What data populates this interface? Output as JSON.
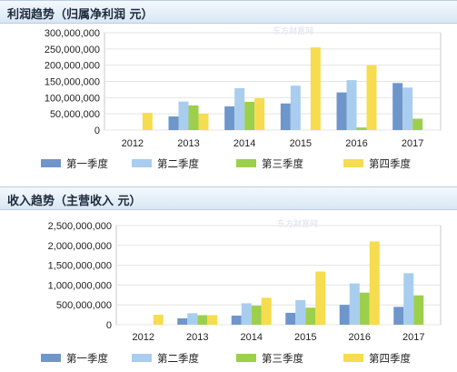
{
  "colors": {
    "q1": "#6f96cb",
    "q2": "#a9cdee",
    "q3": "#9ccf4c",
    "q4": "#f6dc4f",
    "grid": "#e4e4e4"
  },
  "chart_data": [
    {
      "type": "bar",
      "title": "利润趋势（归属净利润  元）",
      "watermark": "东方财富网",
      "categories": [
        "2012",
        "2013",
        "2014",
        "2015",
        "2016",
        "2017"
      ],
      "ylim": [
        0,
        300000000
      ],
      "yticks": [
        "0",
        "50,000,000",
        "100,000,000",
        "150,000,000",
        "200,000,000",
        "250,000,000",
        "300,000,000"
      ],
      "ytick_values": [
        0,
        50000000,
        100000000,
        150000000,
        200000000,
        250000000,
        300000000
      ],
      "series": [
        {
          "name": "第一季度",
          "color": "#6f96cb",
          "values": [
            null,
            42000000,
            73000000,
            82000000,
            116000000,
            145000000
          ]
        },
        {
          "name": "第二季度",
          "color": "#a9cdee",
          "values": [
            null,
            88000000,
            129000000,
            137000000,
            154000000,
            131000000
          ]
        },
        {
          "name": "第三季度",
          "color": "#9ccf4c",
          "values": [
            null,
            76000000,
            87000000,
            null,
            8000000,
            35000000
          ]
        },
        {
          "name": "第四季度",
          "color": "#f6dc4f",
          "values": [
            53000000,
            50000000,
            98000000,
            255000000,
            200000000,
            null
          ]
        }
      ],
      "legend": "bottom"
    },
    {
      "type": "bar",
      "title": "收入趋势（主营收入  元）",
      "watermark": "东方财富网",
      "categories": [
        "2012",
        "2013",
        "2014",
        "2015",
        "2016",
        "2017"
      ],
      "ylim": [
        0,
        2500000000
      ],
      "yticks": [
        "0",
        "500,000,000",
        "1,000,000,000",
        "1,500,000,000",
        "2,000,000,000",
        "2,500,000,000"
      ],
      "ytick_values": [
        0,
        500000000,
        1000000000,
        1500000000,
        2000000000,
        2500000000
      ],
      "series": [
        {
          "name": "第一季度",
          "color": "#6f96cb",
          "values": [
            null,
            160000000,
            230000000,
            300000000,
            500000000,
            450000000
          ]
        },
        {
          "name": "第二季度",
          "color": "#a9cdee",
          "values": [
            null,
            290000000,
            540000000,
            620000000,
            1040000000,
            1300000000
          ]
        },
        {
          "name": "第三季度",
          "color": "#9ccf4c",
          "values": [
            null,
            240000000,
            480000000,
            430000000,
            810000000,
            740000000
          ]
        },
        {
          "name": "第四季度",
          "color": "#f6dc4f",
          "values": [
            250000000,
            240000000,
            680000000,
            1340000000,
            2100000000,
            null
          ]
        }
      ],
      "legend": "bottom"
    }
  ]
}
